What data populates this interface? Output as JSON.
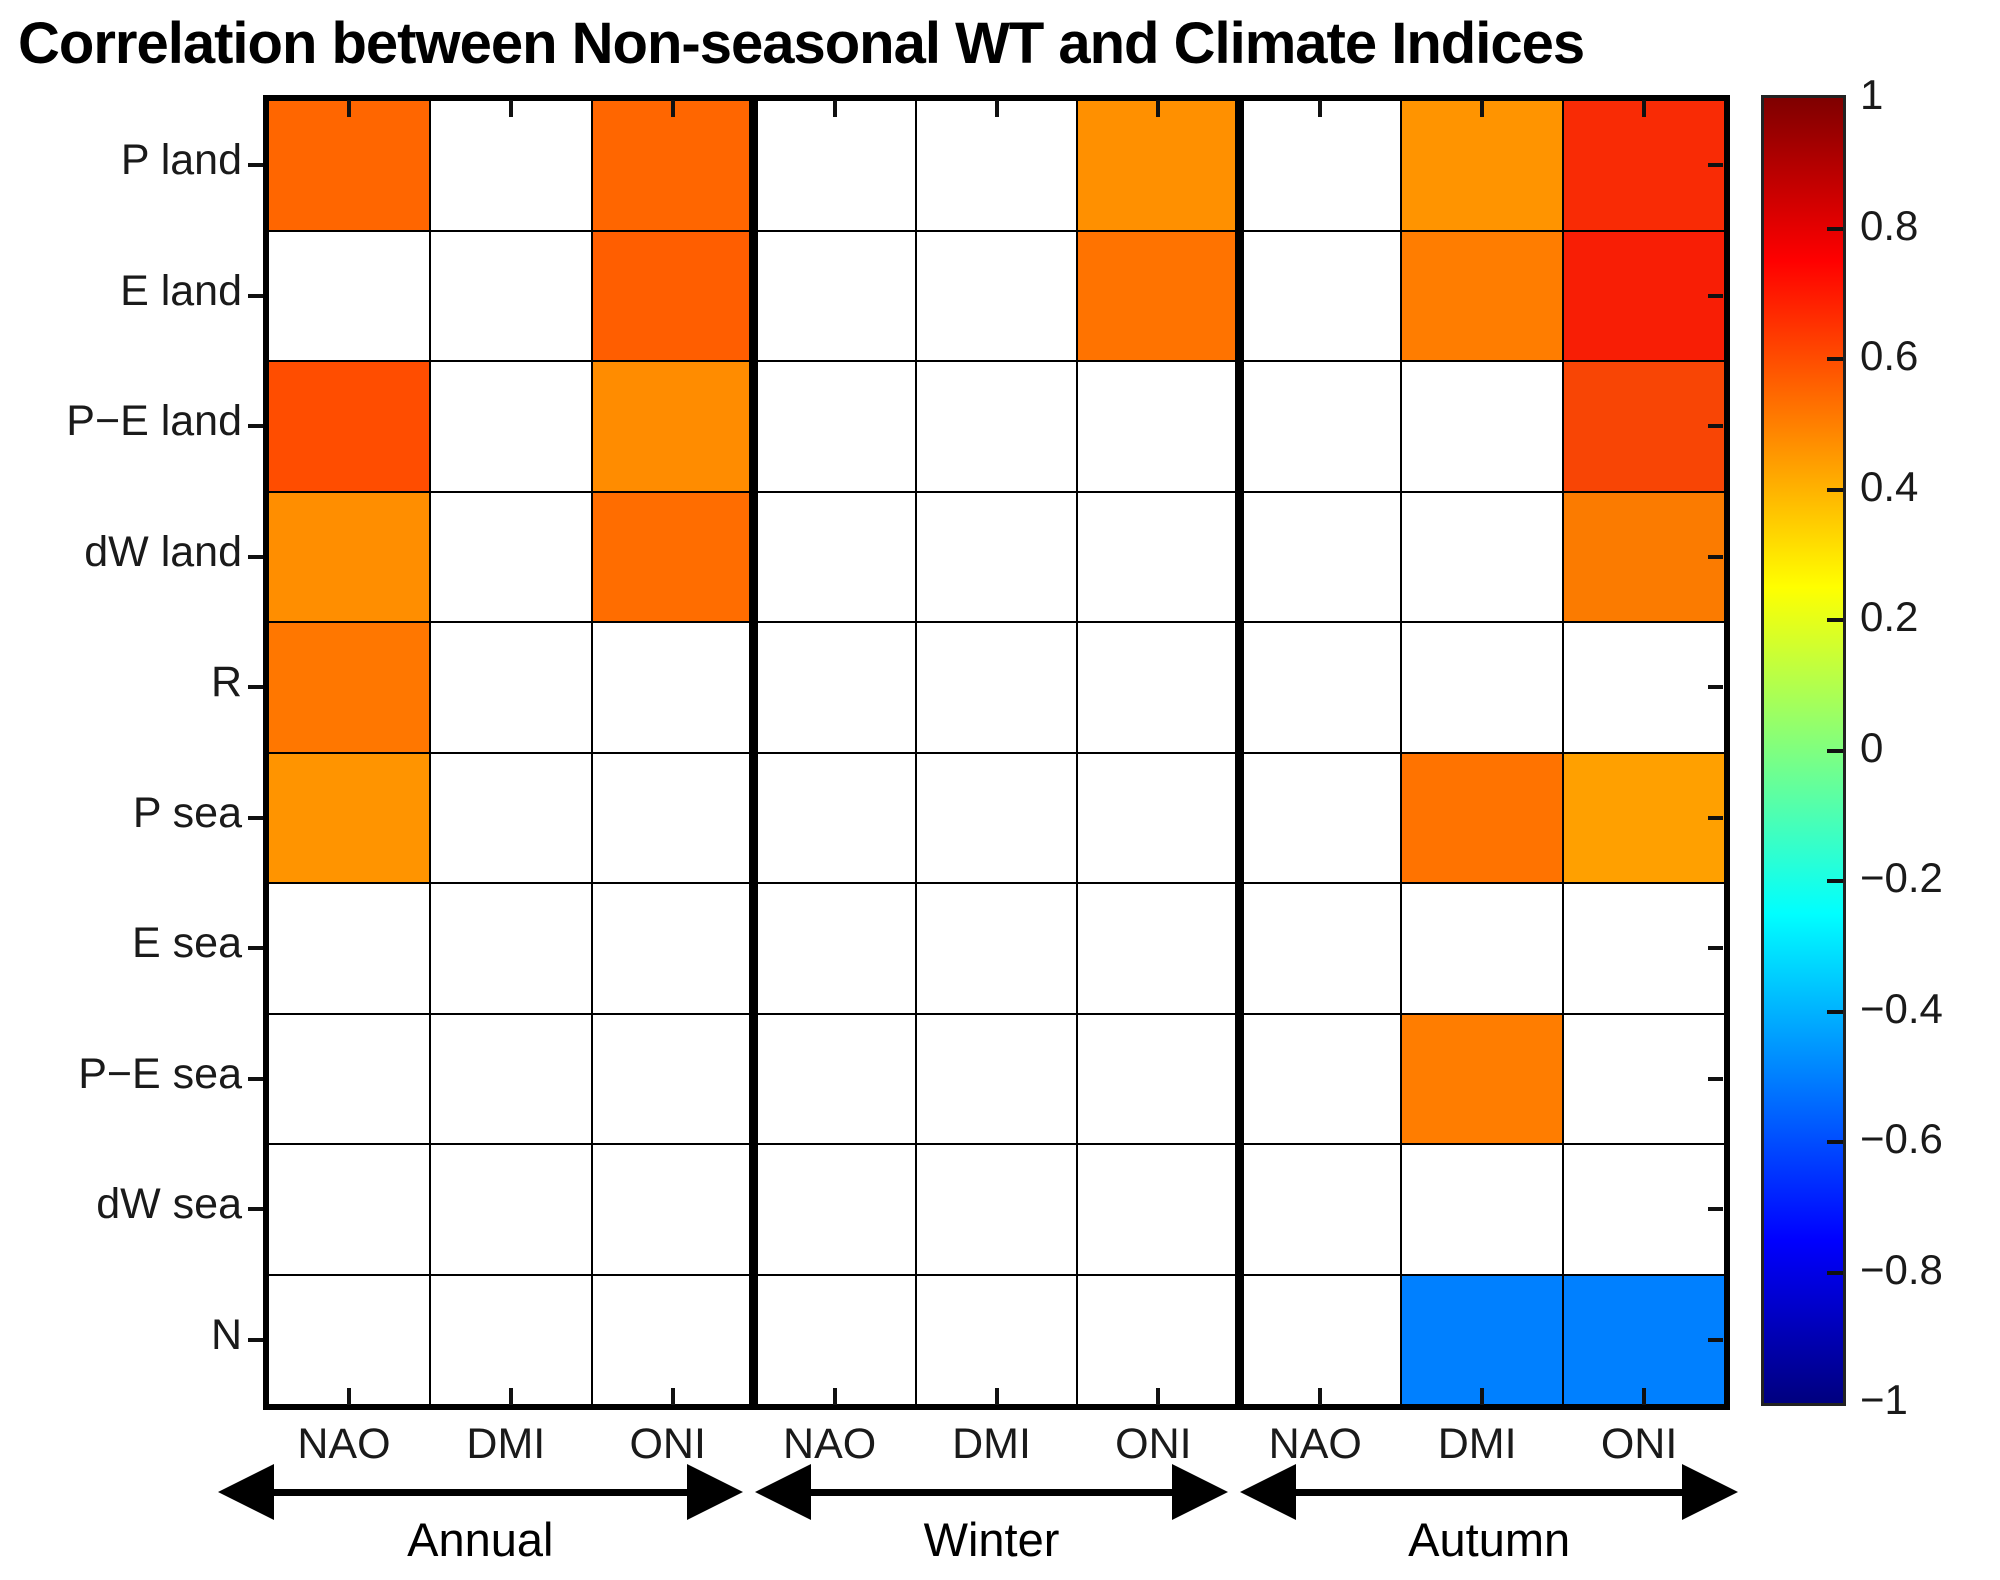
{
  "title": "Correlation between Non-seasonal WT and Climate Indices",
  "chart_data": {
    "type": "heatmap",
    "title": "Correlation between Non-seasonal WT and Climate Indices",
    "row_labels": [
      "P land",
      "E land",
      "P−E land",
      "dW land",
      "R",
      "P sea",
      "E sea",
      "P−E sea",
      "dW sea",
      "N"
    ],
    "col_labels": [
      "NAO",
      "DMI",
      "ONI",
      "NAO",
      "DMI",
      "ONI",
      "NAO",
      "DMI",
      "ONI"
    ],
    "group_labels": [
      "Annual",
      "Winter",
      "Autumn"
    ],
    "cols_per_group": 3,
    "value_range": [
      -1,
      1
    ],
    "empty_color": "#FFFFFF",
    "grid_line_color": "#000000",
    "values": [
      [
        0.55,
        null,
        0.55,
        null,
        null,
        0.47,
        null,
        0.46,
        0.68
      ],
      [
        null,
        null,
        0.57,
        null,
        null,
        0.52,
        null,
        0.5,
        0.7
      ],
      [
        0.6,
        null,
        0.48,
        null,
        null,
        null,
        null,
        null,
        0.64
      ],
      [
        0.47,
        null,
        0.54,
        null,
        null,
        null,
        null,
        null,
        0.51
      ],
      [
        0.52,
        null,
        null,
        null,
        null,
        null,
        null,
        null,
        null
      ],
      [
        0.46,
        null,
        null,
        null,
        null,
        null,
        null,
        0.52,
        0.44
      ],
      [
        null,
        null,
        null,
        null,
        null,
        null,
        null,
        null,
        null
      ],
      [
        null,
        null,
        null,
        null,
        null,
        null,
        null,
        0.5,
        null
      ],
      [
        null,
        null,
        null,
        null,
        null,
        null,
        null,
        null,
        null
      ],
      [
        null,
        null,
        null,
        null,
        null,
        null,
        null,
        -0.5,
        -0.5
      ]
    ],
    "cell_colors": [
      [
        "#FF6600",
        null,
        "#FF6600",
        null,
        null,
        "#FF9000",
        null,
        "#FF9400",
        "#F92B05"
      ],
      [
        null,
        null,
        "#FF5E00",
        null,
        null,
        "#FF7300",
        null,
        "#FF7D00",
        "#F81E05"
      ],
      [
        "#FF4D00",
        null,
        "#FF8C00",
        null,
        null,
        null,
        null,
        null,
        "#F84505"
      ],
      [
        "#FF8E00",
        null,
        "#FF6D00",
        null,
        null,
        null,
        null,
        null,
        "#FB7B00"
      ],
      [
        "#FF7700",
        null,
        null,
        null,
        null,
        null,
        null,
        null,
        null
      ],
      [
        "#FF9400",
        null,
        null,
        null,
        null,
        null,
        null,
        "#FF7300",
        "#FFA000"
      ],
      [
        null,
        null,
        null,
        null,
        null,
        null,
        null,
        null,
        null
      ],
      [
        null,
        null,
        null,
        null,
        null,
        null,
        null,
        "#FF7D00",
        null
      ],
      [
        null,
        null,
        null,
        null,
        null,
        null,
        null,
        null,
        null
      ],
      [
        null,
        null,
        null,
        null,
        null,
        null,
        null,
        "#0080FF",
        "#0080FF"
      ]
    ],
    "colorbar": {
      "colormap": "jet",
      "tick_labels": [
        "1",
        "0.8",
        "0.6",
        "0.4",
        "0.2",
        "0",
        "−0.2",
        "−0.4",
        "−0.6",
        "−0.8",
        "−1"
      ],
      "gradient_stops": [
        {
          "pos": 0.0,
          "color": "#7F0000"
        },
        {
          "pos": 0.125,
          "color": "#FF0000"
        },
        {
          "pos": 0.375,
          "color": "#FFFF00"
        },
        {
          "pos": 0.625,
          "color": "#00FFFF"
        },
        {
          "pos": 0.875,
          "color": "#0000FF"
        },
        {
          "pos": 1.0,
          "color": "#00007F"
        }
      ]
    }
  }
}
